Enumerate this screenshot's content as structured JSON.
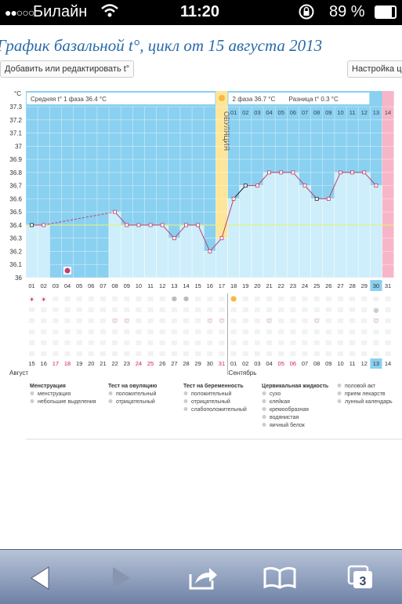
{
  "status_bar": {
    "carrier": "Билайн",
    "time": "11:20",
    "battery": "89 %",
    "signal_icon": "signal-dots-icon",
    "wifi_icon": "wifi-icon",
    "lock_icon": "rotation-lock-icon",
    "battery_icon": "battery-icon"
  },
  "page": {
    "title": "График базальной t°, цикл от 15 августа 2013",
    "add_button": "Добавить или редактировать t°",
    "settings_button": "Настройка цикла"
  },
  "chart_data": {
    "type": "line",
    "ylabel": "°C",
    "ylim": [
      36.0,
      37.3
    ],
    "yticks": [
      "37.3",
      "37.2",
      "37.1",
      "37",
      "36.9",
      "36.8",
      "36.7",
      "36.6",
      "36.5",
      "36.4",
      "36.3",
      "36.2",
      "36.1",
      "36"
    ],
    "cycle_days": [
      "01",
      "02",
      "03",
      "04",
      "05",
      "06",
      "07",
      "08",
      "09",
      "10",
      "11",
      "12",
      "13",
      "14",
      "15",
      "16",
      "17",
      "18",
      "19",
      "20",
      "21",
      "22",
      "23",
      "24",
      "25",
      "26",
      "27",
      "28",
      "29",
      "30",
      "31"
    ],
    "phase2_days": [
      "01",
      "02",
      "03",
      "04",
      "05",
      "06",
      "07",
      "08",
      "09",
      "10",
      "11",
      "12",
      "13",
      "14"
    ],
    "calendar_days": [
      "15",
      "16",
      "17",
      "18",
      "19",
      "20",
      "21",
      "22",
      "23",
      "24",
      "25",
      "26",
      "27",
      "28",
      "29",
      "30",
      "31",
      "01",
      "02",
      "03",
      "04",
      "05",
      "06",
      "07",
      "08",
      "09",
      "10",
      "11",
      "12",
      "13",
      "14"
    ],
    "red_calendar_days": [
      2,
      3,
      9,
      10,
      16,
      21,
      22
    ],
    "months": [
      "Август",
      "Сентябрь"
    ],
    "phase1_avg_label": "Средняя t° 1 фаза",
    "phase1_avg": "36.4 °C",
    "phase2_label": "2 фаза",
    "phase2_avg": "36.7 °C",
    "diff_label": "Разница t°",
    "diff": "0.3 °C",
    "ovulation_label": "ОВУЛЯЦИЯ",
    "ovulation_day": 17,
    "temperatures": [
      36.4,
      36.4,
      null,
      null,
      null,
      null,
      null,
      36.5,
      36.4,
      36.4,
      36.4,
      36.4,
      36.3,
      36.4,
      36.4,
      36.2,
      36.3,
      36.6,
      36.7,
      36.7,
      36.8,
      36.8,
      36.8,
      36.7,
      36.6,
      36.6,
      36.8,
      36.8,
      36.8,
      36.7,
      null
    ],
    "coverline": 36.4,
    "highlight_day": "30",
    "highlight_calendar_day": "13",
    "legend": {
      "menstruation_title": "Менструация",
      "menstruation_items": [
        "менструация",
        "небольшие выделения"
      ],
      "ovulation_test_title": "Тест на овуляцию",
      "ovulation_test_items": [
        "положительный",
        "отрицательный"
      ],
      "pregnancy_test_title": "Тест на беременность",
      "pregnancy_test_items": [
        "положительный",
        "отрицательный",
        "слабоположительный"
      ],
      "cervical_title": "Цервикальная жидкость",
      "cervical_items": [
        "сухо",
        "клейкая",
        "кремообразная",
        "водянистая",
        "яичный белок"
      ],
      "other_items": [
        "половой акт",
        "прием лекарств",
        "лунный календарь"
      ]
    }
  },
  "colors": {
    "phase_blue": "#8ad0f0",
    "bar_fill": "#cdeefa",
    "line": "#c0406a",
    "ovulation": "#fde69a",
    "pink": "#f7b6c8",
    "coverline": "#e2f27a"
  },
  "toolbar": {
    "back_icon": "back-arrow-icon",
    "forward_icon": "forward-arrow-icon",
    "share_icon": "share-icon",
    "bookmarks_icon": "bookmarks-icon",
    "tabs_icon": "tabs-icon",
    "tabs_count": "3"
  }
}
